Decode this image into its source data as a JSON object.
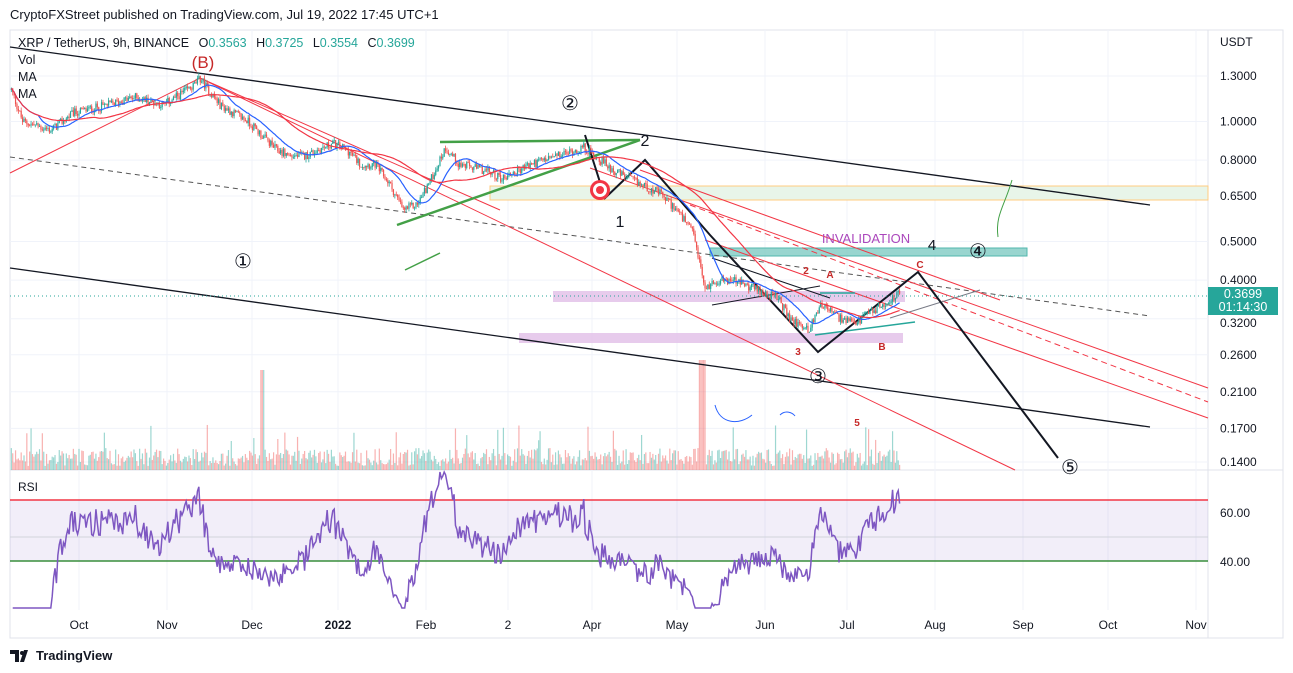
{
  "header": {
    "published": "CryptoFXStreet published on TradingView.com, Jul 19, 2022 17:45 UTC+1"
  },
  "legend": {
    "symbol": "XRP / TetherUS, 9h, BINANCE",
    "o_label": "O",
    "o": "0.3563",
    "h_label": "H",
    "h": "0.3725",
    "l_label": "L",
    "l": "0.3554",
    "c_label": "C",
    "c": "0.3699",
    "vol": "Vol",
    "ma1": "MA",
    "ma2": "MA"
  },
  "price_axis": {
    "unit": "USDT",
    "ticks": [
      "1.3000",
      "1.0000",
      "0.8000",
      "0.6500",
      "0.5000",
      "0.4000",
      "0.3200",
      "0.2600",
      "0.2100",
      "0.1700",
      "0.1400"
    ],
    "current_price": "0.3699",
    "countdown": "01:14:30"
  },
  "rsi": {
    "label": "RSI",
    "ticks": [
      "60.00",
      "40.00"
    ],
    "upper": 65,
    "lower": 40
  },
  "time_axis": {
    "ticks": [
      "Oct",
      "Nov",
      "Dec",
      "2022",
      "Feb",
      "2",
      "Apr",
      "May",
      "Jun",
      "Jul",
      "Aug",
      "Sep",
      "Oct",
      "Nov"
    ]
  },
  "annotations": {
    "w1": "①",
    "w2": "②",
    "w3": "③",
    "w4": "④",
    "w5": "⑤",
    "B_big": "(B)",
    "one": "1",
    "two": "2",
    "invalidation": "INVALIDATION",
    "four": "4",
    "A": "A",
    "B": "B",
    "C": "C",
    "three": "3",
    "five": "5",
    "two_small": "2"
  },
  "colors": {
    "up": "#26a69a",
    "down": "#ef5350",
    "ma_fast": "#2962ff",
    "ma_slow": "#f23645",
    "rsi": "#7e57c2"
  },
  "footer": {
    "brand": "TradingView"
  },
  "chart_data": {
    "type": "candlestick",
    "title": "XRP / TetherUS, 9h, BINANCE",
    "ylabel": "USDT",
    "yscale": "log",
    "ylim": [
      0.13,
      1.45
    ],
    "x_unit": "days since 2021-09-01",
    "price_points": [
      [
        6,
        1.2
      ],
      [
        10,
        1.0
      ],
      [
        20,
        0.95
      ],
      [
        28,
        1.05
      ],
      [
        40,
        1.1
      ],
      [
        50,
        1.15
      ],
      [
        60,
        1.1
      ],
      [
        70,
        1.22
      ],
      [
        73,
        1.28
      ],
      [
        80,
        1.1
      ],
      [
        90,
        1.0
      ],
      [
        95,
        0.92
      ],
      [
        100,
        0.85
      ],
      [
        105,
        0.82
      ],
      [
        110,
        0.82
      ],
      [
        120,
        0.88
      ],
      [
        125,
        0.85
      ],
      [
        130,
        0.78
      ],
      [
        135,
        0.78
      ],
      [
        140,
        0.7
      ],
      [
        145,
        0.6
      ],
      [
        150,
        0.62
      ],
      [
        155,
        0.72
      ],
      [
        160,
        0.86
      ],
      [
        165,
        0.78
      ],
      [
        175,
        0.75
      ],
      [
        180,
        0.72
      ],
      [
        190,
        0.78
      ],
      [
        200,
        0.82
      ],
      [
        209,
        0.86
      ],
      [
        212,
        0.83
      ],
      [
        220,
        0.75
      ],
      [
        225,
        0.72
      ],
      [
        236,
        0.66
      ],
      [
        242,
        0.6
      ],
      [
        248,
        0.52
      ],
      [
        252,
        0.38
      ],
      [
        256,
        0.4
      ],
      [
        262,
        0.4
      ],
      [
        270,
        0.38
      ],
      [
        278,
        0.36
      ],
      [
        282,
        0.32
      ],
      [
        289,
        0.3
      ],
      [
        293,
        0.35
      ],
      [
        300,
        0.32
      ],
      [
        305,
        0.31
      ],
      [
        310,
        0.33
      ],
      [
        316,
        0.35
      ],
      [
        321,
        0.3699
      ]
    ]
  }
}
